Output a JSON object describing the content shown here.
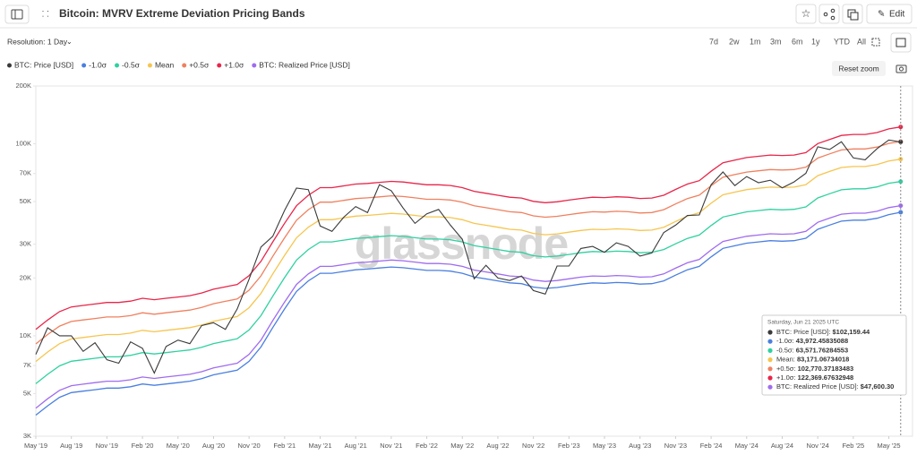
{
  "ui": {
    "title": "Bitcoin: MVRV Extreme Deviation Pricing Bands",
    "edit": "Edit",
    "resolution": "Resolution: 1 Day",
    "ranges": [
      "7d",
      "2w",
      "1m",
      "3m",
      "6m",
      "1y",
      "YTD",
      "All"
    ],
    "reset_zoom": "Reset zoom",
    "watermark": "glassnode"
  },
  "chart_data": {
    "type": "line",
    "log_y": true,
    "grid": false,
    "legend": "top-left",
    "xlim": [
      "2019-05",
      "2025-07"
    ],
    "ylim": [
      3000,
      200000
    ],
    "xticks": [
      {
        "value": "2019-05",
        "label": "May '19"
      },
      {
        "value": "2019-08",
        "label": "Aug '19"
      },
      {
        "value": "2019-11",
        "label": "Nov '19"
      },
      {
        "value": "2020-02",
        "label": "Feb '20"
      },
      {
        "value": "2020-05",
        "label": "May '20"
      },
      {
        "value": "2020-08",
        "label": "Aug '20"
      },
      {
        "value": "2020-11",
        "label": "Nov '20"
      },
      {
        "value": "2021-02",
        "label": "Feb '21"
      },
      {
        "value": "2021-05",
        "label": "May '21"
      },
      {
        "value": "2021-08",
        "label": "Aug '21"
      },
      {
        "value": "2021-11",
        "label": "Nov '21"
      },
      {
        "value": "2022-02",
        "label": "Feb '22"
      },
      {
        "value": "2022-05",
        "label": "May '22"
      },
      {
        "value": "2022-08",
        "label": "Aug '22"
      },
      {
        "value": "2022-11",
        "label": "Nov '22"
      },
      {
        "value": "2023-02",
        "label": "Feb '23"
      },
      {
        "value": "2023-05",
        "label": "May '23"
      },
      {
        "value": "2023-08",
        "label": "Aug '23"
      },
      {
        "value": "2023-11",
        "label": "Nov '23"
      },
      {
        "value": "2024-02",
        "label": "Feb '24"
      },
      {
        "value": "2024-05",
        "label": "May '24"
      },
      {
        "value": "2024-08",
        "label": "Aug '24"
      },
      {
        "value": "2024-11",
        "label": "Nov '24"
      },
      {
        "value": "2025-02",
        "label": "Feb '25"
      },
      {
        "value": "2025-05",
        "label": "May '25"
      }
    ],
    "yticks": [
      {
        "value": 3000,
        "label": "3K"
      },
      {
        "value": 5000,
        "label": "5K"
      },
      {
        "value": 7000,
        "label": "7K"
      },
      {
        "value": 10000,
        "label": "10K"
      },
      {
        "value": 20000,
        "label": "20K"
      },
      {
        "value": 30000,
        "label": "30K"
      },
      {
        "value": 50000,
        "label": "50K"
      },
      {
        "value": 70000,
        "label": "70K"
      },
      {
        "value": 100000,
        "label": "100K"
      },
      {
        "value": 200000,
        "label": "200K"
      }
    ],
    "x": [
      "2019-05",
      "2019-06",
      "2019-07",
      "2019-08",
      "2019-09",
      "2019-10",
      "2019-11",
      "2019-12",
      "2020-01",
      "2020-02",
      "2020-03",
      "2020-04",
      "2020-05",
      "2020-06",
      "2020-07",
      "2020-08",
      "2020-09",
      "2020-10",
      "2020-11",
      "2020-12",
      "2021-01",
      "2021-02",
      "2021-03",
      "2021-04",
      "2021-05",
      "2021-06",
      "2021-07",
      "2021-08",
      "2021-09",
      "2021-10",
      "2021-11",
      "2021-12",
      "2022-01",
      "2022-02",
      "2022-03",
      "2022-04",
      "2022-05",
      "2022-06",
      "2022-07",
      "2022-08",
      "2022-09",
      "2022-10",
      "2022-11",
      "2022-12",
      "2023-01",
      "2023-02",
      "2023-03",
      "2023-04",
      "2023-05",
      "2023-06",
      "2023-07",
      "2023-08",
      "2023-09",
      "2023-10",
      "2023-11",
      "2023-12",
      "2024-01",
      "2024-02",
      "2024-03",
      "2024-04",
      "2024-05",
      "2024-06",
      "2024-07",
      "2024-08",
      "2024-09",
      "2024-10",
      "2024-11",
      "2024-12",
      "2025-01",
      "2025-02",
      "2025-03",
      "2025-04",
      "2025-05",
      "2025-06"
    ],
    "series": [
      {
        "name": "BTC: Price [USD]",
        "color": "#3a3a3a",
        "values": [
          8000,
          11000,
          10000,
          10000,
          8300,
          9200,
          7500,
          7200,
          9300,
          8600,
          6400,
          8800,
          9500,
          9100,
          11300,
          11700,
          10800,
          13800,
          19700,
          29000,
          33000,
          45000,
          58800,
          57700,
          37300,
          35000,
          41500,
          47100,
          43800,
          61300,
          57000,
          46300,
          38500,
          43200,
          45500,
          37700,
          31800,
          19800,
          23300,
          20000,
          19400,
          20500,
          17200,
          16500,
          23100,
          23100,
          28500,
          29200,
          27200,
          30500,
          29200,
          26000,
          27000,
          34500,
          37700,
          42300,
          42600,
          61200,
          71300,
          60600,
          67500,
          62700,
          64600,
          59000,
          63300,
          70200,
          96400,
          93400,
          102400,
          84400,
          82500,
          94200,
          104600,
          102159.44
        ]
      },
      {
        "name": "-1.0σ",
        "color": "#4a7fe0",
        "values": [
          3860,
          4320,
          4780,
          5060,
          5150,
          5240,
          5340,
          5340,
          5430,
          5610,
          5520,
          5610,
          5700,
          5800,
          5980,
          6260,
          6440,
          6620,
          7360,
          8740,
          11040,
          13800,
          17020,
          19320,
          21160,
          21160,
          21620,
          22080,
          22260,
          22540,
          22820,
          22630,
          22260,
          21900,
          21900,
          21710,
          21160,
          20240,
          19780,
          19320,
          18860,
          18680,
          17940,
          17660,
          17850,
          18220,
          18580,
          18860,
          18770,
          18950,
          18860,
          18580,
          18680,
          19320,
          20700,
          22080,
          23000,
          25760,
          28520,
          29440,
          30360,
          30820,
          31280,
          31100,
          31280,
          32200,
          35880,
          37720,
          39560,
          40020,
          40020,
          40940,
          42780,
          43972.46
        ]
      },
      {
        "name": "-0.5σ",
        "color": "#2fd1a0",
        "values": [
          5630,
          6300,
          6970,
          7370,
          7500,
          7640,
          7770,
          7770,
          7910,
          8170,
          8040,
          8170,
          8310,
          8440,
          8710,
          9110,
          9380,
          9650,
          10720,
          12730,
          16080,
          20100,
          24790,
          28140,
          30820,
          30820,
          31490,
          32160,
          32430,
          32830,
          33230,
          32960,
          32430,
          31890,
          31890,
          31620,
          30820,
          29480,
          28810,
          28140,
          27470,
          27200,
          26130,
          25730,
          26000,
          26530,
          27070,
          27470,
          27340,
          27600,
          27470,
          27070,
          27200,
          28140,
          30150,
          32160,
          33500,
          37520,
          41540,
          42880,
          44220,
          44890,
          45560,
          45290,
          45560,
          46900,
          52260,
          54940,
          57620,
          58290,
          58290,
          59630,
          62310,
          63571.76
        ]
      },
      {
        "name": "Mean",
        "color": "#f6c54f",
        "values": [
          7350,
          8230,
          9100,
          9630,
          9800,
          9980,
          10150,
          10150,
          10330,
          10680,
          10500,
          10680,
          10850,
          11030,
          11380,
          11900,
          12250,
          12600,
          14000,
          16630,
          21000,
          26250,
          32380,
          36750,
          40250,
          40250,
          41130,
          42000,
          42350,
          42880,
          43400,
          43050,
          42350,
          41650,
          41650,
          41300,
          40250,
          38500,
          37630,
          36750,
          35880,
          35530,
          34130,
          33600,
          33950,
          34650,
          35350,
          35880,
          35700,
          36050,
          35880,
          35350,
          35530,
          36750,
          39380,
          42000,
          43750,
          49000,
          54250,
          56000,
          57750,
          58630,
          59500,
          59150,
          59500,
          61250,
          68250,
          71750,
          75250,
          76130,
          76130,
          77880,
          81380,
          83171.07
        ]
      },
      {
        "name": "+0.5σ",
        "color": "#f0805f",
        "values": [
          9070,
          10150,
          11230,
          11880,
          12100,
          12310,
          12530,
          12530,
          12740,
          13180,
          12960,
          13180,
          13390,
          13610,
          14040,
          14690,
          15120,
          15550,
          17280,
          20520,
          25920,
          32400,
          39960,
          45360,
          49680,
          49680,
          50760,
          51840,
          52270,
          52920,
          53570,
          53140,
          52270,
          51410,
          51410,
          50980,
          49680,
          47520,
          46440,
          45360,
          44280,
          43850,
          42120,
          41470,
          41900,
          42770,
          43630,
          44280,
          44060,
          44500,
          44280,
          43630,
          43850,
          45360,
          48600,
          51840,
          54000,
          60480,
          66960,
          69120,
          71280,
          72360,
          73440,
          73010,
          73440,
          75600,
          84240,
          88560,
          92880,
          93960,
          93960,
          96120,
          100440,
          102770.37
        ]
      },
      {
        "name": "+1.0σ",
        "color": "#e8264a",
        "values": [
          10790,
          12080,
          13360,
          14140,
          14390,
          14650,
          14910,
          14910,
          15160,
          15680,
          15420,
          15680,
          15930,
          16190,
          16710,
          17480,
          17990,
          18500,
          20560,
          24420,
          30840,
          38550,
          47550,
          53970,
          59110,
          59110,
          60400,
          61680,
          62190,
          62970,
          63740,
          63220,
          62190,
          61170,
          61170,
          60650,
          59110,
          56540,
          55260,
          53970,
          52690,
          52170,
          50120,
          49340,
          49860,
          50890,
          51910,
          52690,
          52430,
          52940,
          52690,
          51910,
          52170,
          53970,
          57830,
          61680,
          64250,
          71960,
          79670,
          82240,
          84810,
          86100,
          87380,
          86870,
          87380,
          89950,
          100230,
          105370,
          110510,
          111800,
          111800,
          114370,
          119510,
          122369.68
        ]
      },
      {
        "name": "BTC: Realized Price [USD]",
        "color": "#9f6cf0",
        "values": [
          4200,
          4700,
          5200,
          5500,
          5600,
          5700,
          5800,
          5800,
          5900,
          6100,
          6000,
          6100,
          6200,
          6300,
          6500,
          6800,
          7000,
          7200,
          8000,
          9500,
          12000,
          15000,
          18500,
          21000,
          23000,
          23000,
          23500,
          24000,
          24200,
          24500,
          24800,
          24600,
          24200,
          23800,
          23800,
          23600,
          23000,
          22000,
          21500,
          21000,
          20500,
          20300,
          19500,
          19200,
          19400,
          19800,
          20200,
          20500,
          20400,
          20600,
          20500,
          20200,
          20300,
          21000,
          22500,
          24000,
          25000,
          28000,
          31000,
          32000,
          33000,
          33500,
          34000,
          33800,
          34000,
          35000,
          39000,
          41000,
          43000,
          43500,
          43500,
          44500,
          46500,
          47600
        ]
      }
    ],
    "tooltip": {
      "date": "Saturday, Jun 21 2025 UTC",
      "rows": [
        {
          "label": "BTC: Price [USD]: ",
          "value": "$102,159.44"
        },
        {
          "label": "-1.0σ: ",
          "value": "43,972.45835088"
        },
        {
          "label": "-0.5σ: ",
          "value": "63,571.76284553"
        },
        {
          "label": "Mean: ",
          "value": "83,171.06734018"
        },
        {
          "label": "+0.5σ: ",
          "value": "102,770.37183483"
        },
        {
          "label": "+1.0σ: ",
          "value": "122,369.67632948"
        },
        {
          "label": "BTC: Realized Price [USD]: ",
          "value": "$47,600.30"
        }
      ]
    }
  }
}
